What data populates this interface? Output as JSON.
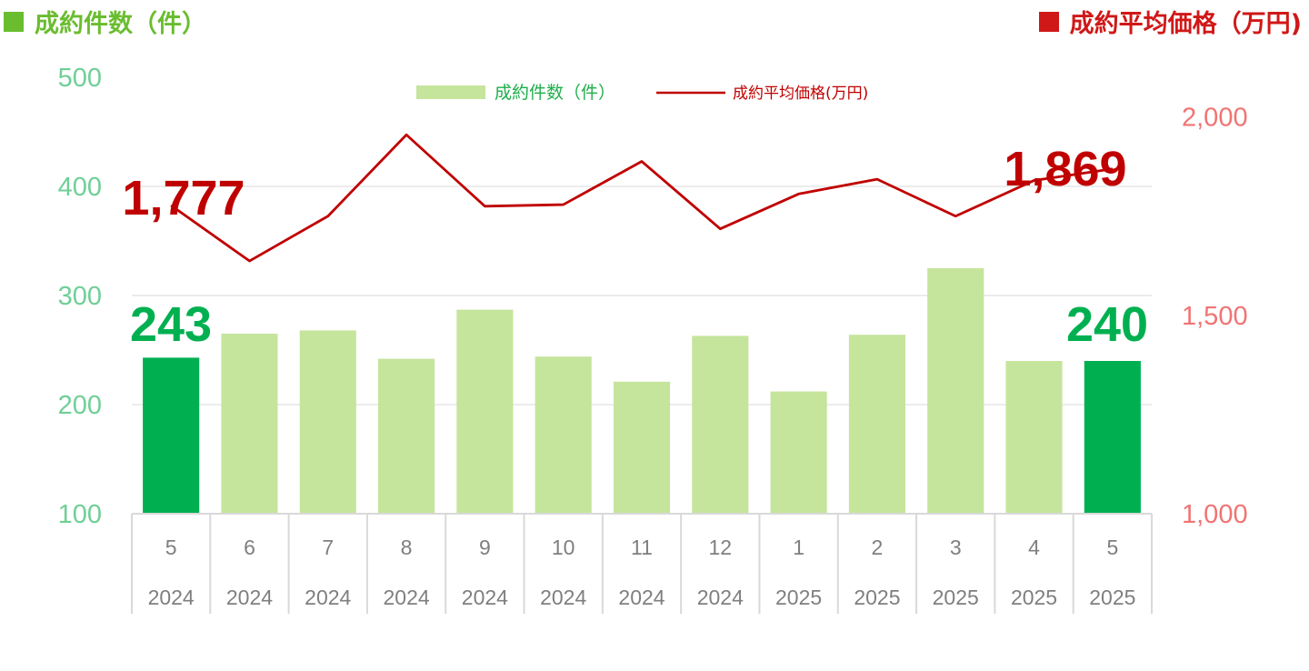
{
  "header": {
    "left_title": "成約件数（件）",
    "right_title": "成約平均価格（万円)"
  },
  "legend": {
    "bar_label": "成約件数（件）",
    "line_label": "成約平均価格(万円)"
  },
  "colors": {
    "bar": "#c5e59c",
    "bar_highlight": "#00b050",
    "line": "#c00000",
    "left_axis": "#6fcf97",
    "right_axis": "#f07474",
    "grid": "#d9d9d9"
  },
  "chart_data": {
    "type": "bar+line",
    "categories": [
      {
        "month": "5",
        "year": "2024"
      },
      {
        "month": "6",
        "year": "2024"
      },
      {
        "month": "7",
        "year": "2024"
      },
      {
        "month": "8",
        "year": "2024"
      },
      {
        "month": "9",
        "year": "2024"
      },
      {
        "month": "10",
        "year": "2024"
      },
      {
        "month": "11",
        "year": "2024"
      },
      {
        "month": "12",
        "year": "2024"
      },
      {
        "month": "1",
        "year": "2025"
      },
      {
        "month": "2",
        "year": "2025"
      },
      {
        "month": "3",
        "year": "2025"
      },
      {
        "month": "4",
        "year": "2025"
      },
      {
        "month": "5",
        "year": "2025"
      }
    ],
    "series": [
      {
        "name": "成約件数（件）",
        "axis": "left",
        "kind": "bar",
        "values": [
          243,
          265,
          268,
          242,
          287,
          244,
          221,
          263,
          212,
          264,
          325,
          240,
          240
        ],
        "highlight": [
          0,
          12
        ]
      },
      {
        "name": "成約平均価格(万円)",
        "axis": "right",
        "kind": "line",
        "values": [
          1777,
          1637,
          1750,
          1955,
          1775,
          1779,
          1888,
          1718,
          1806,
          1843,
          1750,
          1840,
          1869
        ]
      }
    ],
    "left_axis": {
      "ylim": [
        100,
        500
      ],
      "ticks": [
        "100",
        "200",
        "300",
        "400",
        "500"
      ]
    },
    "right_axis": {
      "ylim": [
        1000,
        2100
      ],
      "ticks": [
        "1,000",
        "1,500",
        "2,000"
      ]
    },
    "callouts": {
      "first_count": "243",
      "last_count": "240",
      "first_price": "1,777",
      "last_price": "1,869"
    }
  }
}
